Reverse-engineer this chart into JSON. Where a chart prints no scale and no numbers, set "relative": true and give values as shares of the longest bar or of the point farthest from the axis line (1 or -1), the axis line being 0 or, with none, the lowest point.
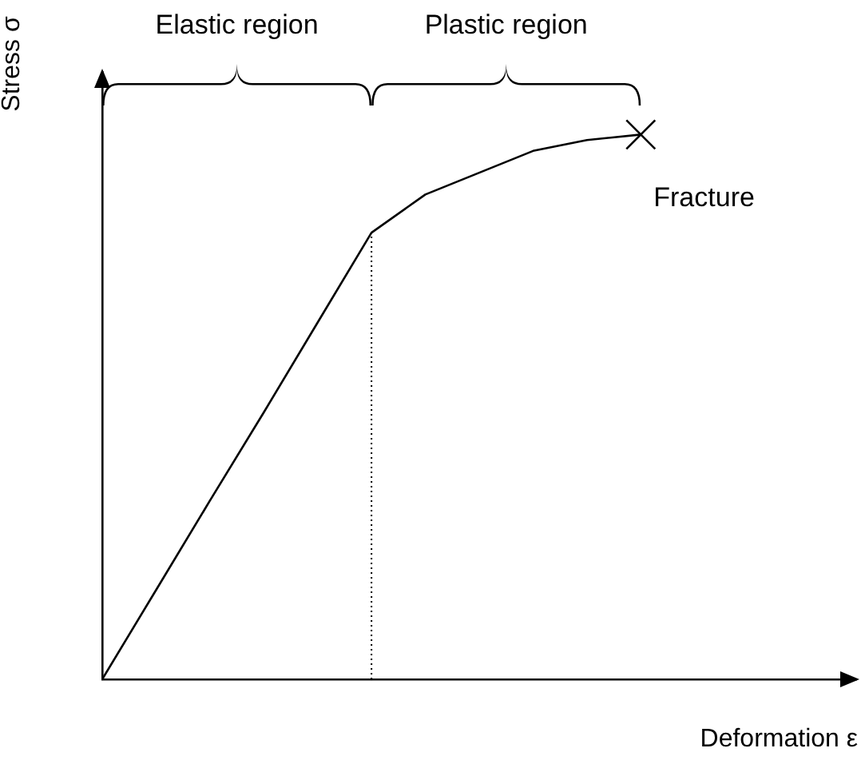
{
  "chart_data": {
    "type": "line",
    "xlabel": "Deformation ε",
    "ylabel": "Stress σ",
    "relative": true,
    "categories": [
      null,
      null,
      null,
      null,
      null,
      null,
      null,
      null,
      null,
      null,
      null,
      null,
      null,
      null,
      null
    ],
    "series": [
      {
        "color": "#000000",
        "values": [
          0,
          0.164,
          0.328,
          0.49,
          0.655,
          0.82,
          0.89,
          0.93,
          0.97,
          0.99,
          1,
          null,
          null,
          null,
          null
        ]
      }
    ],
    "annotations": [
      "Elastic region",
      "Plastic region",
      "Fracture"
    ],
    "marker": "none",
    "grid": false,
    "legend": false,
    "tick_labels": false
  }
}
